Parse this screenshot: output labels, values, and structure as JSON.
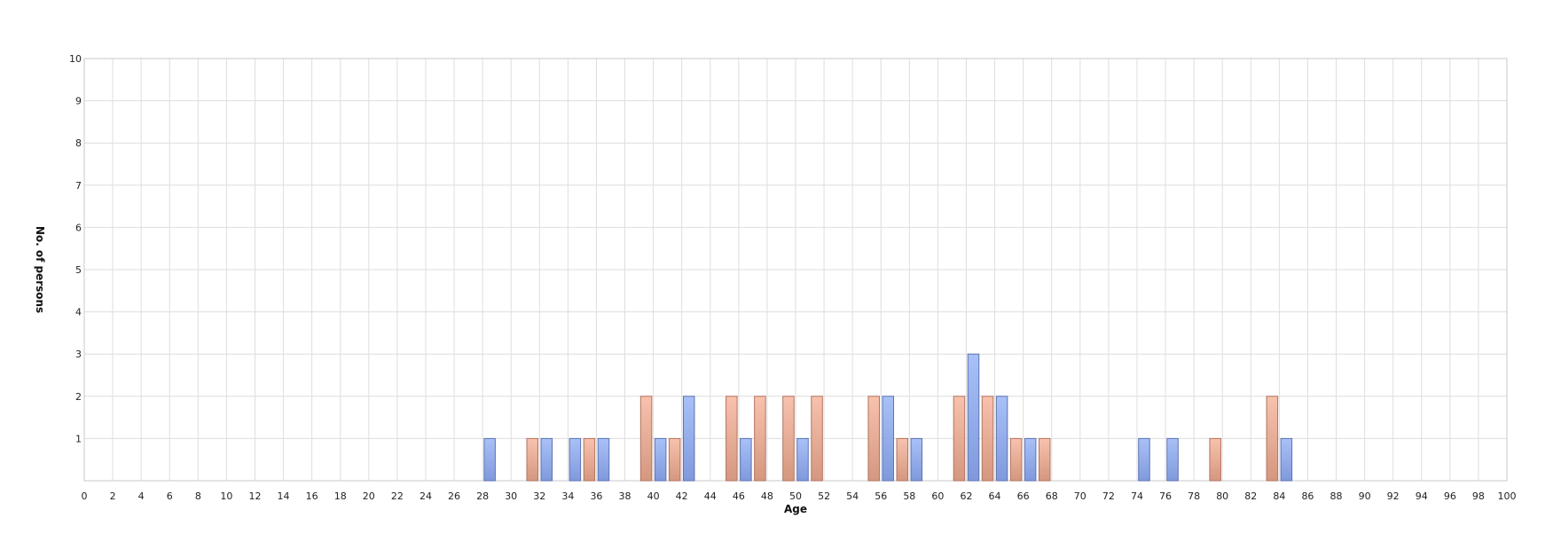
{
  "chart_data": {
    "type": "bar",
    "xlabel": "Age",
    "ylabel": "No. of persons",
    "xlim": [
      0,
      100
    ],
    "ylim": [
      0,
      10
    ],
    "x_ticks": [
      0,
      2,
      4,
      6,
      8,
      10,
      12,
      14,
      16,
      18,
      20,
      22,
      24,
      26,
      28,
      30,
      32,
      34,
      36,
      38,
      40,
      42,
      44,
      46,
      48,
      50,
      52,
      54,
      56,
      58,
      60,
      62,
      64,
      66,
      68,
      70,
      72,
      74,
      76,
      78,
      80,
      82,
      84,
      86,
      88,
      90,
      92,
      94,
      96,
      98,
      100
    ],
    "y_ticks": [
      1,
      2,
      3,
      4,
      5,
      6,
      7,
      8,
      9,
      10
    ],
    "grid": true,
    "series": [
      {
        "color": "#9bb5f0",
        "points": [
          {
            "x": 28.5,
            "y": 1
          },
          {
            "x": 32.5,
            "y": 1
          },
          {
            "x": 34.5,
            "y": 1
          },
          {
            "x": 36.5,
            "y": 1
          },
          {
            "x": 40.5,
            "y": 1
          },
          {
            "x": 42.5,
            "y": 2
          },
          {
            "x": 46.5,
            "y": 1
          },
          {
            "x": 50.5,
            "y": 1
          },
          {
            "x": 56.5,
            "y": 2
          },
          {
            "x": 58.5,
            "y": 1
          },
          {
            "x": 62.5,
            "y": 3
          },
          {
            "x": 64.5,
            "y": 2
          },
          {
            "x": 66.5,
            "y": 1
          },
          {
            "x": 74.5,
            "y": 1
          },
          {
            "x": 76.5,
            "y": 1
          },
          {
            "x": 84.5,
            "y": 1
          }
        ]
      },
      {
        "color": "#f5b29a",
        "points": [
          {
            "x": 31.5,
            "y": 1
          },
          {
            "x": 35.5,
            "y": 1
          },
          {
            "x": 39.5,
            "y": 2
          },
          {
            "x": 41.5,
            "y": 1
          },
          {
            "x": 45.5,
            "y": 2
          },
          {
            "x": 47.5,
            "y": 2
          },
          {
            "x": 49.5,
            "y": 2
          },
          {
            "x": 51.5,
            "y": 2
          },
          {
            "x": 55.5,
            "y": 2
          },
          {
            "x": 57.5,
            "y": 1
          },
          {
            "x": 61.5,
            "y": 2
          },
          {
            "x": 63.5,
            "y": 2
          },
          {
            "x": 65.5,
            "y": 1
          },
          {
            "x": 67.5,
            "y": 1
          },
          {
            "x": 79.5,
            "y": 1
          },
          {
            "x": 83.5,
            "y": 2
          }
        ]
      }
    ]
  }
}
